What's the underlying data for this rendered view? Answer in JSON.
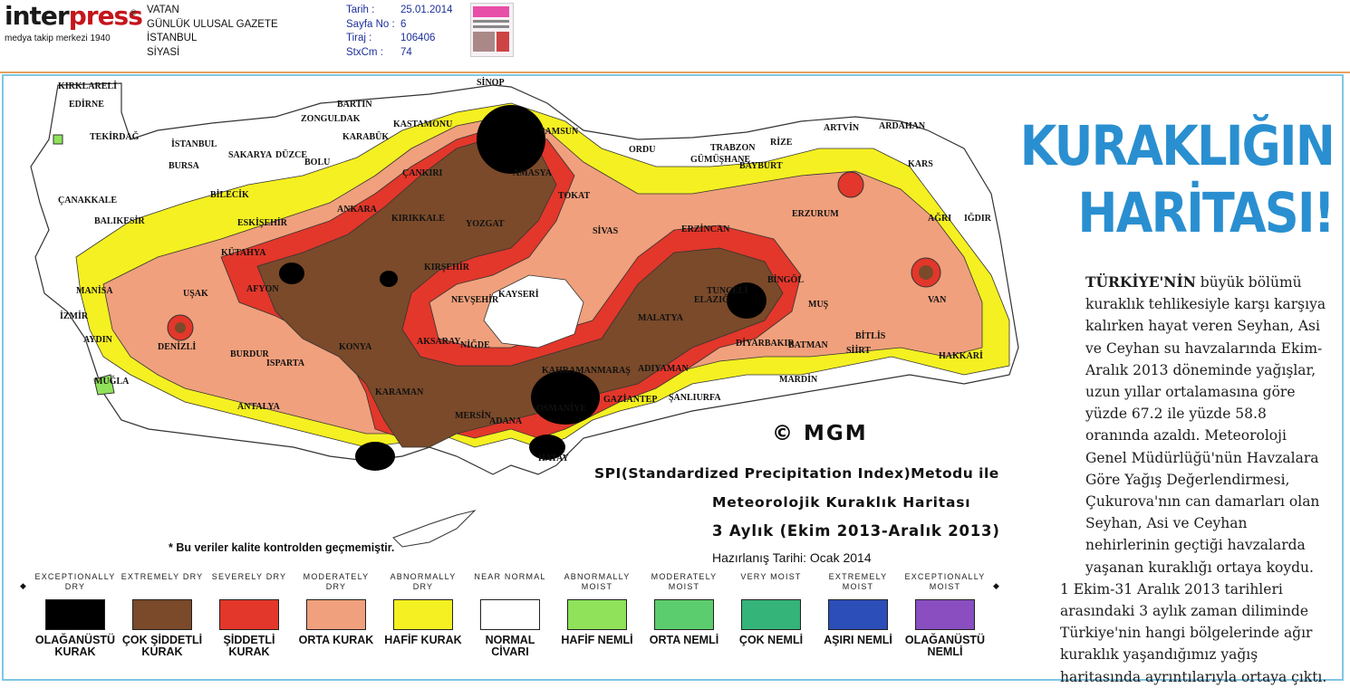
{
  "header": {
    "logo_text": "interpress",
    "logo_reg": "®",
    "logo_sub": "medya takip merkezi 1940",
    "publication": [
      "VATAN",
      "GÜNLÜK ULUSAL GAZETE",
      "İSTANBUL",
      "SİYASİ"
    ],
    "meta": [
      {
        "key": "Tarih :",
        "value": "25.01.2014"
      },
      {
        "key": "Sayfa No :",
        "value": "6"
      },
      {
        "key": "Tiraj :",
        "value": "106406"
      },
      {
        "key": "StxCm :",
        "value": "74"
      }
    ]
  },
  "article": {
    "headline_line1": "KURAKLIĞIN",
    "headline_line2": "HARİTASI!",
    "lead": "TÜRKİYE'NİN",
    "body1": " büyük bölümü kuraklık tehlikesiyle karşı karşıya kalırken  hayat veren Seyhan, Asi ve Ceyhan su havzalarında Ekim-Aralık 2013 döneminde yağışlar, uzun yıllar ortalamasına göre yüzde 67.2 ile yüzde 58.8 oranında azaldı. Meteoroloji Genel Müdürlüğü'nün Havzalara Göre Yağış Değerlendirmesi, Çukurova'nın can damarları olan Seyhan, Asi ve Ceyhan nehirlerinin geçtiği havzalarda yaşanan kuraklığı ortaya koydu.",
    "body2": "1 Ekim-31 Aralık 2013 tarihleri arasındaki 3 aylık zaman diliminde Türkiye'nin hangi bölgelerinde ağır kuraklık yaşandığımız yağış haritasında  ayrıntılarıyla ortaya çıktı."
  },
  "map": {
    "copyright": "© MGM",
    "title_line1": "SPI(Standardized Precipitation Index)Metodu ile",
    "title_line2": "Meteorolojik Kuraklık Haritası",
    "title_line3": "3 Aylık (Ekim 2013-Aralık 2013)",
    "prepared": "Hazırlanış Tarihi: Ocak 2014",
    "note": "* Bu veriler kalite kontrolden geçmemiştir.",
    "cities": [
      "KIRKLARELİ",
      "EDİRNE",
      "TEKİRDAĞ",
      "İSTANBUL",
      "ZONGULDAK",
      "BARTIN",
      "KASTAMONU",
      "SİNOP",
      "SAMSUN",
      "ORDU",
      "TRABZON",
      "RİZE",
      "ARTVİN",
      "ARDAHAN",
      "KARS",
      "IĞDIR",
      "AĞRI",
      "SAKARYA",
      "DÜZCE",
      "BOLU",
      "KARABÜK",
      "ÇANKIRI",
      "AMASYA",
      "TOKAT",
      "GÜMÜŞHANE",
      "BAYBURT",
      "ERZURUM",
      "BURSA",
      "BİLECİK",
      "ÇANAKKALE",
      "BALIKESİR",
      "ESKİŞEHİR",
      "ANKARA",
      "KIRIKKALE",
      "YOZGAT",
      "SİVAS",
      "ERZİNCAN",
      "KÜTAHYA",
      "KIRŞEHİR",
      "NEVŞEHİR",
      "KAYSERİ",
      "TUNCELİ",
      "BİNGÖL",
      "MUŞ",
      "VAN",
      "MANİSA",
      "UŞAK",
      "AFYON",
      "AKSARAY",
      "NİĞDE",
      "MALATYA",
      "ELAZIĞ",
      "BİTLİS",
      "İZMİR",
      "AYDIN",
      "DENİZLİ",
      "KONYA",
      "BURDUR",
      "ISPARTA",
      "KAHRAMANMARAŞ",
      "ADIYAMAN",
      "DİYARBAKIR",
      "BATMAN",
      "SİİRT",
      "HAKKARİ",
      "MUĞLA",
      "ANTALYA",
      "KARAMAN",
      "MERSİN",
      "ADANA",
      "OSMANİYE",
      "GAZİANTEP",
      "ŞANLIURFA",
      "MARDİN",
      "HATAY"
    ]
  },
  "legend": [
    {
      "en": "EXCEPTIONALLY DRY",
      "tr": "OLAĞANÜSTÜ KURAK",
      "color": "#000000"
    },
    {
      "en": "EXTREMELY DRY",
      "tr": "ÇOK ŞİDDETLİ KURAK",
      "color": "#7a4a2a"
    },
    {
      "en": "SEVERELY DRY",
      "tr": "ŞİDDETLİ KURAK",
      "color": "#e2372a"
    },
    {
      "en": "MODERATELY DRY",
      "tr": "ORTA KURAK",
      "color": "#f0a07c"
    },
    {
      "en": "ABNORMALLY DRY",
      "tr": "HAFİF KURAK",
      "color": "#f5f021"
    },
    {
      "en": "NEAR NORMAL",
      "tr": "NORMAL CİVARI",
      "color": "#ffffff"
    },
    {
      "en": "ABNORMALLY MOIST",
      "tr": "HAFİF NEMLİ",
      "color": "#8fe25a"
    },
    {
      "en": "MODERATELY MOIST",
      "tr": "ORTA NEMLİ",
      "color": "#5ccd6e"
    },
    {
      "en": "VERY MOIST",
      "tr": "ÇOK NEMLİ",
      "color": "#35b47a"
    },
    {
      "en": "EXTREMELY MOIST",
      "tr": "AŞIRI NEMLİ",
      "color": "#2c4eb8"
    },
    {
      "en": "EXCEPTIONALLY MOIST",
      "tr": "OLAĞANÜSTÜ NEMLİ",
      "color": "#8a4ec0"
    }
  ],
  "colors": {
    "headline": "#2a8fd0",
    "frame": "#7fc6e6",
    "header_rule": "#e8a060",
    "logo_red": "#c4161c",
    "meta_blue": "#1d2f9a"
  }
}
